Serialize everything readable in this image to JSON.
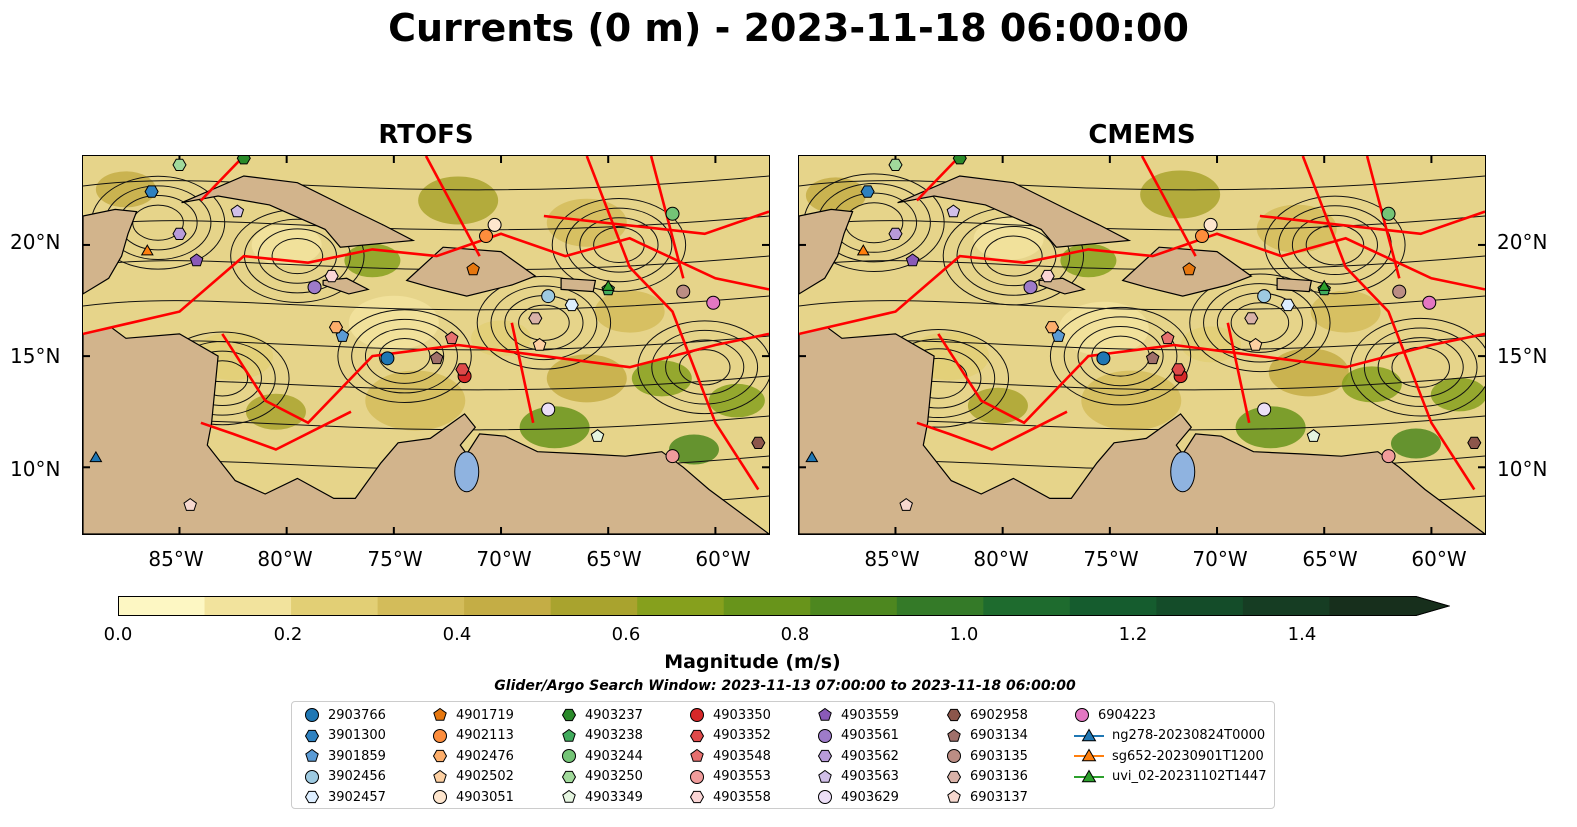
{
  "title": "Currents (0 m) - 2023-11-18 06:00:00",
  "panels": [
    {
      "title": "RTOFS"
    },
    {
      "title": "CMEMS"
    }
  ],
  "lat_labels": [
    "20°N",
    "15°N",
    "10°N"
  ],
  "lon_labels": [
    "85°W",
    "80°W",
    "75°W",
    "70°W",
    "65°W",
    "60°W"
  ],
  "map_extent": {
    "lon": [
      -89.5,
      -57.5
    ],
    "lat": [
      7.0,
      24.0
    ]
  },
  "colorbar": {
    "label": "Magnitude (m/s)",
    "ticks": [
      "0.0",
      "0.2",
      "0.4",
      "0.6",
      "0.8",
      "1.0",
      "1.2",
      "1.4"
    ],
    "range": [
      0.0,
      1.5
    ],
    "step": 0.1,
    "colors": [
      "#fdf7c3",
      "#f2e39d",
      "#e2cf75",
      "#d3bc5a",
      "#c4ad45",
      "#a9a32e",
      "#86a01d",
      "#68941b",
      "#4d871f",
      "#347a28",
      "#1e6b2e",
      "#155c2e",
      "#144c29",
      "#163d23",
      "#172f1c"
    ],
    "extend": "max"
  },
  "search_window": "Glider/Argo Search Window: 2023-11-13 07:00:00 to 2023-11-18 06:00:00",
  "colors": {
    "land": "#d2b48c",
    "eez_boundary": "#ff0000",
    "lake": "#8fb3e0"
  },
  "legend": [
    {
      "label": "2903766",
      "marker": "circle",
      "color": "#1f77b4"
    },
    {
      "label": "3901300",
      "marker": "hexagon",
      "color": "#2e81c0"
    },
    {
      "label": "3901859",
      "marker": "pentagon",
      "color": "#5b9bd5"
    },
    {
      "label": "3902456",
      "marker": "circle",
      "color": "#9ecae1"
    },
    {
      "label": "3902457",
      "marker": "hexagon",
      "color": "#ddeeff"
    },
    {
      "label": "4901719",
      "marker": "pentagon",
      "color": "#e6770f"
    },
    {
      "label": "4902113",
      "marker": "circle",
      "color": "#fd8d3c"
    },
    {
      "label": "4902476",
      "marker": "hexagon",
      "color": "#fdae6b"
    },
    {
      "label": "4902502",
      "marker": "pentagon",
      "color": "#fdd0a2"
    },
    {
      "label": "4903051",
      "marker": "circle",
      "color": "#fee6ce"
    },
    {
      "label": "4903237",
      "marker": "hexagon",
      "color": "#2a8a2a"
    },
    {
      "label": "4903238",
      "marker": "pentagon",
      "color": "#41ab5d"
    },
    {
      "label": "4903244",
      "marker": "circle",
      "color": "#74c476"
    },
    {
      "label": "4903250",
      "marker": "hexagon",
      "color": "#a1d99b"
    },
    {
      "label": "4903349",
      "marker": "pentagon",
      "color": "#e5f5e0"
    },
    {
      "label": "4903350",
      "marker": "circle",
      "color": "#d62728"
    },
    {
      "label": "4903352",
      "marker": "hexagon",
      "color": "#de4a4a"
    },
    {
      "label": "4903548",
      "marker": "pentagon",
      "color": "#e7706f"
    },
    {
      "label": "4903553",
      "marker": "circle",
      "color": "#f09c9b"
    },
    {
      "label": "4903558",
      "marker": "hexagon",
      "color": "#fad5d5"
    },
    {
      "label": "4903559",
      "marker": "pentagon",
      "color": "#8a5ab8"
    },
    {
      "label": "4903561",
      "marker": "circle",
      "color": "#9e7bc9"
    },
    {
      "label": "4903562",
      "marker": "hexagon",
      "color": "#b89bd9"
    },
    {
      "label": "4903563",
      "marker": "pentagon",
      "color": "#d1bfe8"
    },
    {
      "label": "4903629",
      "marker": "circle",
      "color": "#ecdff7"
    },
    {
      "label": "6902958",
      "marker": "hexagon",
      "color": "#8c564b"
    },
    {
      "label": "6903134",
      "marker": "pentagon",
      "color": "#a0706a"
    },
    {
      "label": "6903135",
      "marker": "circle",
      "color": "#bb8d84"
    },
    {
      "label": "6903136",
      "marker": "hexagon",
      "color": "#d9b2a8"
    },
    {
      "label": "6903137",
      "marker": "pentagon",
      "color": "#f6d8cf"
    },
    {
      "label": "6904223",
      "marker": "circle",
      "color": "#e377c2"
    },
    {
      "label": "ng278-20230824T0000",
      "marker": "triangle",
      "color": "#1f77b4"
    },
    {
      "label": "sg652-20230901T1200",
      "marker": "triangle",
      "color": "#ff7f0e"
    },
    {
      "label": "uvi_02-20231102T1447",
      "marker": "triangle",
      "color": "#2ca02c"
    }
  ],
  "floats": [
    {
      "id": "2903766",
      "lon": -75.3,
      "lat": 14.9
    },
    {
      "id": "3901300",
      "lon": -86.3,
      "lat": 22.4
    },
    {
      "id": "3901859",
      "lon": -77.4,
      "lat": 15.9
    },
    {
      "id": "3902456",
      "lon": -67.8,
      "lat": 17.7
    },
    {
      "id": "3902457",
      "lon": -66.7,
      "lat": 17.3
    },
    {
      "id": "4901719",
      "lon": -71.3,
      "lat": 18.9
    },
    {
      "id": "4902113",
      "lon": -70.7,
      "lat": 20.4
    },
    {
      "id": "4902476",
      "lon": -77.7,
      "lat": 16.3
    },
    {
      "id": "4902502",
      "lon": -68.2,
      "lat": 15.5
    },
    {
      "id": "4903051",
      "lon": -70.3,
      "lat": 20.9
    },
    {
      "id": "4903237",
      "lon": -82.0,
      "lat": 23.9
    },
    {
      "id": "4903238",
      "lon": -65.0,
      "lat": 18.0
    },
    {
      "id": "4903244",
      "lon": -62.0,
      "lat": 21.4
    },
    {
      "id": "4903250",
      "lon": -85.0,
      "lat": 23.6
    },
    {
      "id": "4903349",
      "lon": -65.5,
      "lat": 11.4
    },
    {
      "id": "4903350",
      "lon": -71.7,
      "lat": 14.1
    },
    {
      "id": "4903352",
      "lon": -71.8,
      "lat": 14.4
    },
    {
      "id": "4903548",
      "lon": -72.3,
      "lat": 15.8
    },
    {
      "id": "4903553",
      "lon": -62.0,
      "lat": 10.5
    },
    {
      "id": "4903558",
      "lon": -77.9,
      "lat": 18.6
    },
    {
      "id": "4903559",
      "lon": -84.2,
      "lat": 19.3
    },
    {
      "id": "4903561",
      "lon": -78.7,
      "lat": 18.1
    },
    {
      "id": "4903562",
      "lon": -85.0,
      "lat": 20.5
    },
    {
      "id": "4903563",
      "lon": -82.3,
      "lat": 21.5
    },
    {
      "id": "4903629",
      "lon": -67.8,
      "lat": 12.6
    },
    {
      "id": "6902958",
      "lon": -58.0,
      "lat": 11.1
    },
    {
      "id": "6903134",
      "lon": -73.0,
      "lat": 14.9
    },
    {
      "id": "6903135",
      "lon": -61.5,
      "lat": 17.9
    },
    {
      "id": "6903136",
      "lon": -68.4,
      "lat": 16.7
    },
    {
      "id": "6903137",
      "lon": -84.5,
      "lat": 8.3
    },
    {
      "id": "6904223",
      "lon": -60.1,
      "lat": 17.4
    },
    {
      "id": "ng278-20230824T0000",
      "lon": -88.9,
      "lat": 10.4
    },
    {
      "id": "sg652-20230901T1200",
      "lon": -86.5,
      "lat": 19.7
    },
    {
      "id": "uvi_02-20231102T1447",
      "lon": -65.0,
      "lat": 18.1
    }
  ]
}
